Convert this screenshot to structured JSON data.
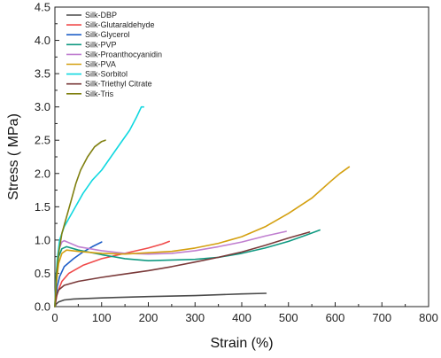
{
  "chart_data": {
    "type": "line",
    "xlabel": "Strain (%)",
    "ylabel": "Stress ( MPa)",
    "xlim": [
      0,
      800
    ],
    "ylim": [
      0,
      4.5
    ],
    "x_ticks": [
      "0",
      "100",
      "200",
      "300",
      "400",
      "500",
      "600",
      "700",
      "800"
    ],
    "y_ticks": [
      "0.0",
      "0.5",
      "1.0",
      "1.5",
      "2.0",
      "2.5",
      "3.0",
      "3.5",
      "4.0",
      "4.5"
    ],
    "grid": false,
    "legend_position": "top-left",
    "series": [
      {
        "name": "Silk-DBP",
        "color": "#4a4a4a",
        "points": [
          [
            0,
            0
          ],
          [
            3,
            0.04
          ],
          [
            8,
            0.07
          ],
          [
            20,
            0.1
          ],
          [
            40,
            0.115
          ],
          [
            100,
            0.13
          ],
          [
            200,
            0.15
          ],
          [
            300,
            0.165
          ],
          [
            400,
            0.19
          ],
          [
            452,
            0.2
          ]
        ]
      },
      {
        "name": "Silk-Glutaraldehyde",
        "color": "#f04a4a",
        "points": [
          [
            0,
            0
          ],
          [
            5,
            0.2
          ],
          [
            15,
            0.38
          ],
          [
            30,
            0.5
          ],
          [
            60,
            0.62
          ],
          [
            100,
            0.72
          ],
          [
            150,
            0.8
          ],
          [
            200,
            0.88
          ],
          [
            230,
            0.94
          ],
          [
            245,
            0.98
          ]
        ]
      },
      {
        "name": "Silk-Glycerol",
        "color": "#1f5fc8",
        "points": [
          [
            0,
            0
          ],
          [
            5,
            0.3
          ],
          [
            10,
            0.45
          ],
          [
            20,
            0.6
          ],
          [
            40,
            0.72
          ],
          [
            60,
            0.82
          ],
          [
            80,
            0.9
          ],
          [
            100,
            0.97
          ]
        ]
      },
      {
        "name": "Silk-PVP",
        "color": "#109a82",
        "points": [
          [
            0,
            0
          ],
          [
            3,
            0.5
          ],
          [
            8,
            0.75
          ],
          [
            15,
            0.87
          ],
          [
            25,
            0.9
          ],
          [
            50,
            0.85
          ],
          [
            100,
            0.78
          ],
          [
            150,
            0.72
          ],
          [
            200,
            0.69
          ],
          [
            250,
            0.7
          ],
          [
            300,
            0.71
          ],
          [
            350,
            0.74
          ],
          [
            400,
            0.8
          ],
          [
            450,
            0.88
          ],
          [
            500,
            0.98
          ],
          [
            540,
            1.08
          ],
          [
            567,
            1.15
          ]
        ]
      },
      {
        "name": "Silk-Proanthocyanidin",
        "color": "#c07fd0",
        "points": [
          [
            0,
            0
          ],
          [
            3,
            0.5
          ],
          [
            8,
            0.85
          ],
          [
            15,
            0.97
          ],
          [
            20,
            0.99
          ],
          [
            30,
            0.96
          ],
          [
            50,
            0.9
          ],
          [
            100,
            0.84
          ],
          [
            150,
            0.8
          ],
          [
            200,
            0.79
          ],
          [
            250,
            0.8
          ],
          [
            300,
            0.84
          ],
          [
            350,
            0.9
          ],
          [
            400,
            0.97
          ],
          [
            450,
            1.06
          ],
          [
            495,
            1.13
          ]
        ]
      },
      {
        "name": "Silk-PVA",
        "color": "#d4a010",
        "points": [
          [
            0,
            0
          ],
          [
            3,
            0.35
          ],
          [
            8,
            0.65
          ],
          [
            15,
            0.8
          ],
          [
            25,
            0.85
          ],
          [
            50,
            0.83
          ],
          [
            100,
            0.8
          ],
          [
            150,
            0.79
          ],
          [
            200,
            0.81
          ],
          [
            250,
            0.83
          ],
          [
            300,
            0.88
          ],
          [
            350,
            0.95
          ],
          [
            400,
            1.05
          ],
          [
            450,
            1.2
          ],
          [
            500,
            1.4
          ],
          [
            550,
            1.63
          ],
          [
            590,
            1.88
          ],
          [
            610,
            2.0
          ],
          [
            630,
            2.1
          ]
        ]
      },
      {
        "name": "Silk-Sorbitol",
        "color": "#10d8e0",
        "points": [
          [
            0,
            0
          ],
          [
            2,
            0.4
          ],
          [
            5,
            0.7
          ],
          [
            10,
            1.0
          ],
          [
            20,
            1.2
          ],
          [
            40,
            1.45
          ],
          [
            60,
            1.7
          ],
          [
            80,
            1.9
          ],
          [
            100,
            2.05
          ],
          [
            120,
            2.25
          ],
          [
            140,
            2.45
          ],
          [
            160,
            2.65
          ],
          [
            175,
            2.85
          ],
          [
            185,
            3.0
          ],
          [
            190,
            3.0
          ]
        ]
      },
      {
        "name": "Silk-Triethyl Citrate",
        "color": "#7a3a3a",
        "points": [
          [
            0,
            0
          ],
          [
            3,
            0.15
          ],
          [
            8,
            0.25
          ],
          [
            20,
            0.32
          ],
          [
            50,
            0.38
          ],
          [
            100,
            0.44
          ],
          [
            150,
            0.49
          ],
          [
            200,
            0.54
          ],
          [
            250,
            0.6
          ],
          [
            300,
            0.67
          ],
          [
            350,
            0.74
          ],
          [
            400,
            0.82
          ],
          [
            450,
            0.92
          ],
          [
            500,
            1.03
          ],
          [
            545,
            1.12
          ]
        ]
      },
      {
        "name": "Silk-Tris",
        "color": "#808010",
        "points": [
          [
            0,
            0
          ],
          [
            3,
            0.45
          ],
          [
            8,
            0.8
          ],
          [
            15,
            1.1
          ],
          [
            25,
            1.35
          ],
          [
            35,
            1.6
          ],
          [
            45,
            1.85
          ],
          [
            55,
            2.05
          ],
          [
            70,
            2.25
          ],
          [
            85,
            2.4
          ],
          [
            100,
            2.48
          ],
          [
            108,
            2.5
          ]
        ]
      }
    ]
  }
}
